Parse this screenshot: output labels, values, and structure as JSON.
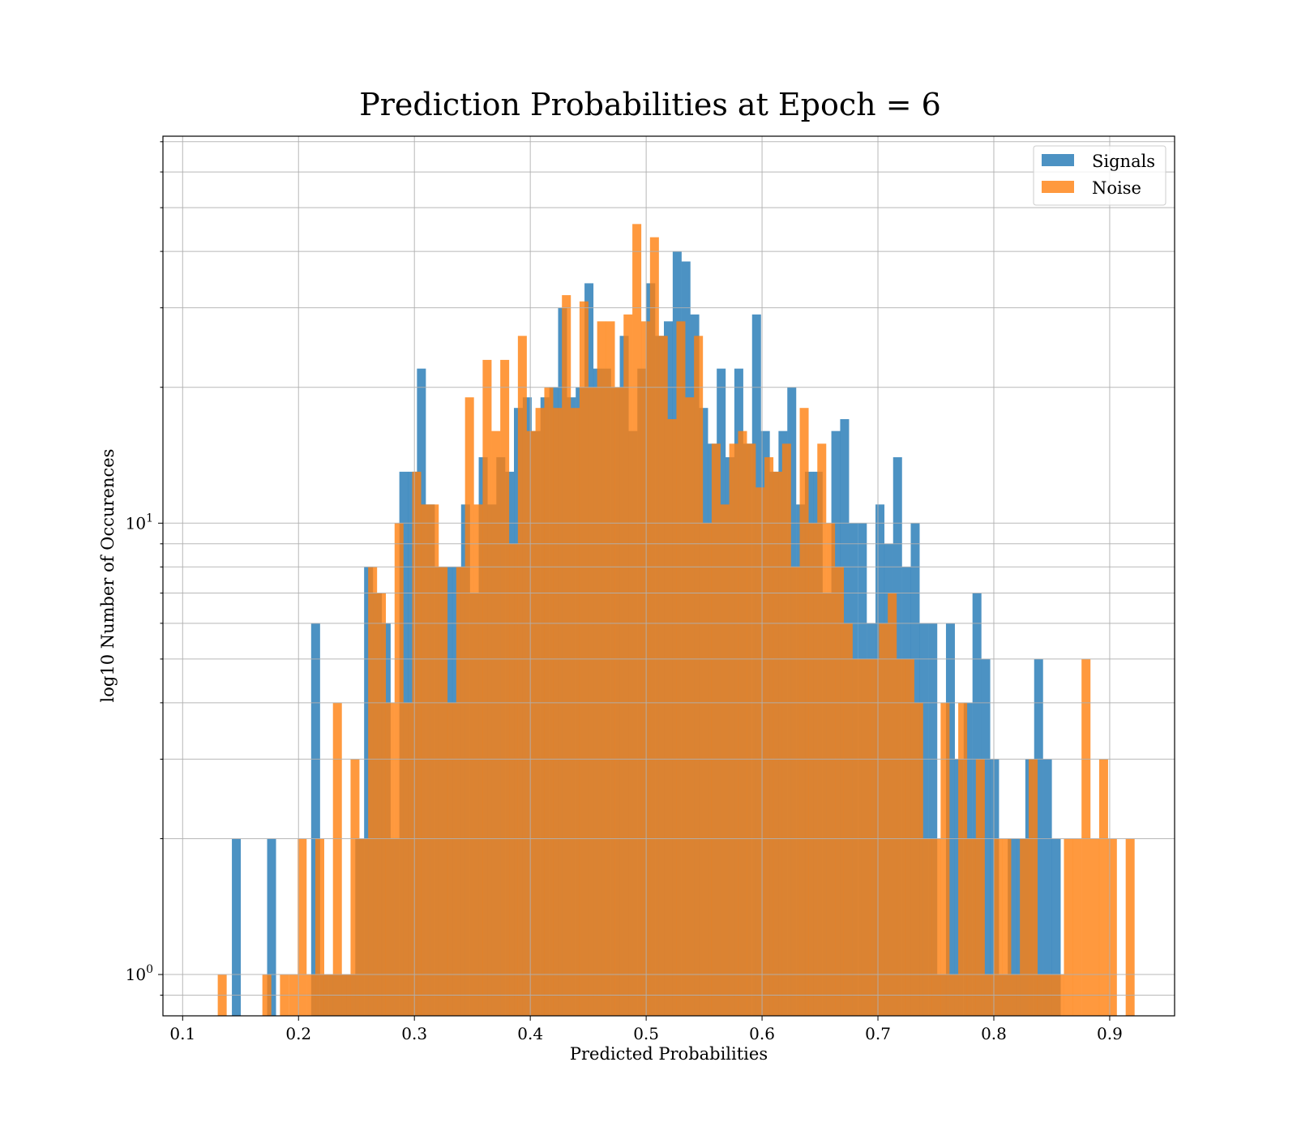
{
  "chart_data": {
    "type": "bar",
    "title": "Prediction Probabilities at Epoch = 6",
    "xlabel": "Predicted Probabilities",
    "ylabel": "log10 Number of Occurences",
    "xlim": [
      0.083,
      0.956
    ],
    "ylim": [
      0.81,
      72
    ],
    "yscale": "log",
    "grid": true,
    "legend": "top-right",
    "x_ticks": [
      "0.1",
      "0.2",
      "0.3",
      "0.4",
      "0.5",
      "0.6",
      "0.7",
      "0.8",
      "0.9"
    ],
    "x_tick_values": [
      0.1,
      0.2,
      0.3,
      0.4,
      0.5,
      0.6,
      0.7,
      0.8,
      0.9
    ],
    "y_ticks": [
      {
        "base": "10",
        "exp": "0",
        "value": 1
      },
      {
        "base": "10",
        "exp": "1",
        "value": 10
      }
    ],
    "colors": {
      "Signals": "#1f77b4",
      "Noise": "#ff7f0e"
    },
    "series": [
      {
        "name": "Signals",
        "color": "#1f77b4",
        "bin_width": 0.0077,
        "bins": [
          [
            0.1425,
            2
          ],
          [
            0.1729,
            2
          ],
          [
            0.2109,
            6
          ],
          [
            0.2186,
            1
          ],
          [
            0.2262,
            1
          ],
          [
            0.2338,
            1
          ],
          [
            0.2414,
            1
          ],
          [
            0.249,
            2
          ],
          [
            0.2566,
            8
          ],
          [
            0.2642,
            7
          ],
          [
            0.2718,
            6
          ],
          [
            0.2794,
            2
          ],
          [
            0.287,
            13
          ],
          [
            0.2946,
            13
          ],
          [
            0.3022,
            22
          ],
          [
            0.3099,
            11
          ],
          [
            0.3175,
            8
          ],
          [
            0.3251,
            8
          ],
          [
            0.3327,
            8
          ],
          [
            0.3403,
            11
          ],
          [
            0.3479,
            7
          ],
          [
            0.3555,
            14
          ],
          [
            0.3631,
            11
          ],
          [
            0.3707,
            14
          ],
          [
            0.3783,
            13
          ],
          [
            0.3859,
            18
          ],
          [
            0.3935,
            19
          ],
          [
            0.4012,
            16
          ],
          [
            0.4088,
            19
          ],
          [
            0.4164,
            20
          ],
          [
            0.424,
            30
          ],
          [
            0.4316,
            19
          ],
          [
            0.4392,
            20
          ],
          [
            0.4468,
            34
          ],
          [
            0.4544,
            22
          ],
          [
            0.462,
            22
          ],
          [
            0.4696,
            20
          ],
          [
            0.4772,
            26
          ],
          [
            0.4848,
            16
          ],
          [
            0.4924,
            22
          ],
          [
            0.5001,
            34
          ],
          [
            0.5077,
            26
          ],
          [
            0.5153,
            28
          ],
          [
            0.5229,
            40
          ],
          [
            0.5305,
            38
          ],
          [
            0.5381,
            29
          ],
          [
            0.5457,
            18
          ],
          [
            0.5533,
            15
          ],
          [
            0.5609,
            22
          ],
          [
            0.5685,
            14
          ],
          [
            0.5761,
            22
          ],
          [
            0.5837,
            15
          ],
          [
            0.5914,
            29
          ],
          [
            0.599,
            16
          ],
          [
            0.6066,
            13
          ],
          [
            0.6142,
            16
          ],
          [
            0.6218,
            20
          ],
          [
            0.6294,
            11
          ],
          [
            0.637,
            13
          ],
          [
            0.6446,
            13
          ],
          [
            0.6522,
            7
          ],
          [
            0.6598,
            16
          ],
          [
            0.6674,
            17
          ],
          [
            0.675,
            10
          ],
          [
            0.6827,
            10
          ],
          [
            0.6903,
            6
          ],
          [
            0.6979,
            11
          ],
          [
            0.7055,
            9
          ],
          [
            0.7131,
            14
          ],
          [
            0.7207,
            8
          ],
          [
            0.7283,
            10
          ],
          [
            0.7359,
            6
          ],
          [
            0.7435,
            6
          ],
          [
            0.7511,
            1
          ],
          [
            0.7587,
            6
          ],
          [
            0.7663,
            3
          ],
          [
            0.774,
            4
          ],
          [
            0.7816,
            7
          ],
          [
            0.7892,
            5
          ],
          [
            0.7968,
            3
          ],
          [
            0.8044,
            1
          ],
          [
            0.812,
            2
          ],
          [
            0.8196,
            2
          ],
          [
            0.8272,
            3
          ],
          [
            0.8348,
            5
          ],
          [
            0.8424,
            3
          ],
          [
            0.85,
            2
          ]
        ]
      },
      {
        "name": "Noise",
        "color": "#ff7f0e",
        "bin_width": 0.0077,
        "bins": [
          [
            0.1303,
            1
          ],
          [
            0.1688,
            1
          ],
          [
            0.184,
            1
          ],
          [
            0.1917,
            1
          ],
          [
            0.1993,
            2
          ],
          [
            0.2069,
            1
          ],
          [
            0.2145,
            2
          ],
          [
            0.2221,
            1
          ],
          [
            0.2297,
            4
          ],
          [
            0.2373,
            1
          ],
          [
            0.2449,
            3
          ],
          [
            0.2525,
            2
          ],
          [
            0.2601,
            8
          ],
          [
            0.2677,
            7
          ],
          [
            0.2753,
            4
          ],
          [
            0.2829,
            10
          ],
          [
            0.2905,
            4
          ],
          [
            0.2981,
            13
          ],
          [
            0.3057,
            11
          ],
          [
            0.3133,
            11
          ],
          [
            0.3209,
            8
          ],
          [
            0.3285,
            4
          ],
          [
            0.3361,
            8
          ],
          [
            0.3437,
            19
          ],
          [
            0.3513,
            11
          ],
          [
            0.3589,
            23
          ],
          [
            0.3665,
            16
          ],
          [
            0.3741,
            23
          ],
          [
            0.3817,
            9
          ],
          [
            0.3893,
            26
          ],
          [
            0.3969,
            16
          ],
          [
            0.4045,
            18
          ],
          [
            0.4121,
            20
          ],
          [
            0.4197,
            18
          ],
          [
            0.4273,
            32
          ],
          [
            0.4349,
            18
          ],
          [
            0.4425,
            31
          ],
          [
            0.4501,
            20
          ],
          [
            0.4577,
            28
          ],
          [
            0.4653,
            28
          ],
          [
            0.4729,
            20
          ],
          [
            0.4805,
            29
          ],
          [
            0.4881,
            46
          ],
          [
            0.4957,
            28
          ],
          [
            0.5033,
            43
          ],
          [
            0.5109,
            26
          ],
          [
            0.5185,
            17
          ],
          [
            0.5261,
            28
          ],
          [
            0.5337,
            19
          ],
          [
            0.5413,
            26
          ],
          [
            0.5489,
            10
          ],
          [
            0.5565,
            15
          ],
          [
            0.5641,
            11
          ],
          [
            0.5717,
            15
          ],
          [
            0.5793,
            16
          ],
          [
            0.5869,
            15
          ],
          [
            0.5945,
            12
          ],
          [
            0.6021,
            14
          ],
          [
            0.6097,
            13
          ],
          [
            0.6173,
            15
          ],
          [
            0.6249,
            8
          ],
          [
            0.6325,
            18
          ],
          [
            0.6401,
            10
          ],
          [
            0.6477,
            15
          ],
          [
            0.6553,
            10
          ],
          [
            0.6629,
            8
          ],
          [
            0.6705,
            6
          ],
          [
            0.6781,
            5
          ],
          [
            0.6857,
            5
          ],
          [
            0.6933,
            5
          ],
          [
            0.7009,
            6
          ],
          [
            0.7085,
            7
          ],
          [
            0.7161,
            5
          ],
          [
            0.7237,
            5
          ],
          [
            0.7313,
            4
          ],
          [
            0.7389,
            2
          ],
          [
            0.7465,
            2
          ],
          [
            0.7541,
            4
          ],
          [
            0.7617,
            1
          ],
          [
            0.7693,
            4
          ],
          [
            0.7769,
            2
          ],
          [
            0.7845,
            3
          ],
          [
            0.7921,
            1
          ],
          [
            0.7997,
            2
          ],
          [
            0.8073,
            2
          ],
          [
            0.8149,
            1
          ],
          [
            0.8225,
            2
          ],
          [
            0.8301,
            3
          ],
          [
            0.8377,
            1
          ],
          [
            0.8453,
            1
          ],
          [
            0.8529,
            1
          ],
          [
            0.8605,
            2
          ],
          [
            0.8681,
            2
          ],
          [
            0.8757,
            5
          ],
          [
            0.8833,
            2
          ],
          [
            0.8909,
            3
          ],
          [
            0.8985,
            2
          ],
          [
            0.9138,
            2
          ]
        ]
      }
    ]
  }
}
